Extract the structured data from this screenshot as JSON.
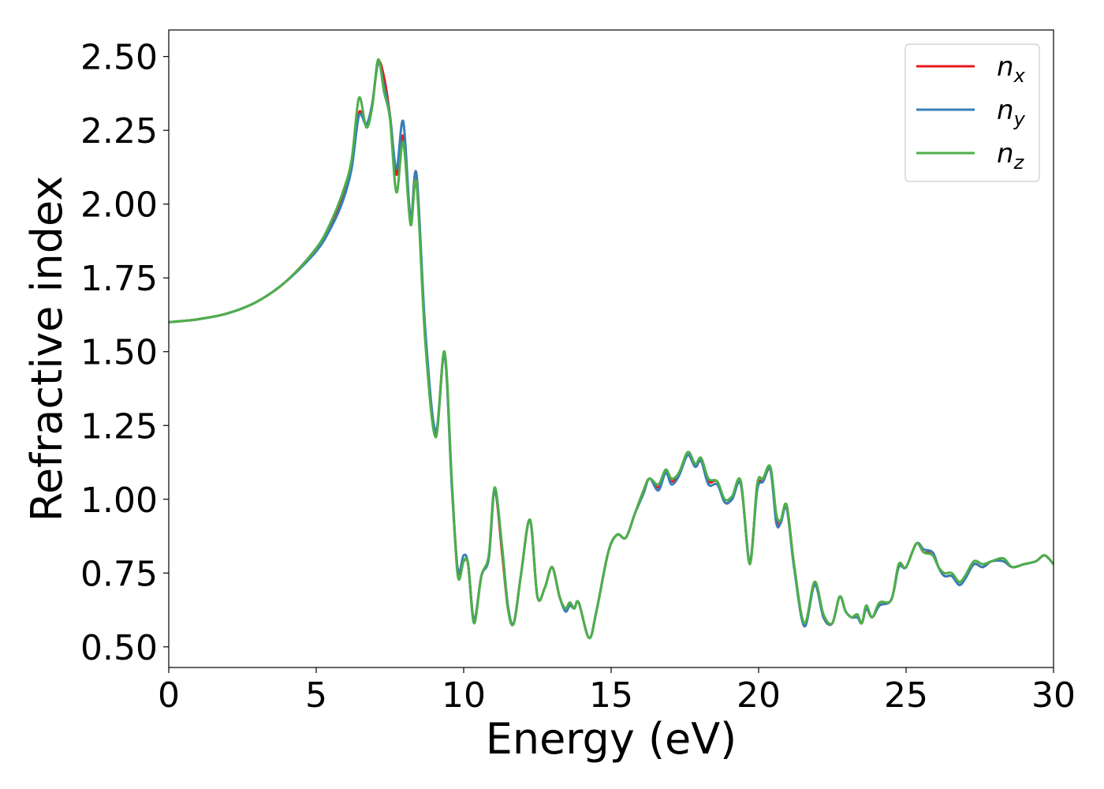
{
  "chart_data": {
    "type": "line",
    "title": "",
    "xlabel": "Energy (eV)",
    "ylabel": "Refractive index",
    "xlim": [
      0,
      30
    ],
    "ylim": [
      0.43,
      2.59
    ],
    "xticks": [
      0,
      5,
      10,
      15,
      20,
      25,
      30
    ],
    "xtick_labels": [
      "0",
      "5",
      "10",
      "15",
      "20",
      "25",
      "30"
    ],
    "yticks": [
      0.5,
      0.75,
      1.0,
      1.25,
      1.5,
      1.75,
      2.0,
      2.25,
      2.5
    ],
    "ytick_labels": [
      "0.50",
      "0.75",
      "1.00",
      "1.25",
      "1.50",
      "1.75",
      "2.00",
      "2.25",
      "2.50"
    ],
    "grid": false,
    "legend_position": "top-right",
    "series": [
      {
        "name": "n_x",
        "label_main": "n",
        "label_sub": "x",
        "color": "#e41a1c",
        "x": [
          0,
          1,
          2,
          3,
          4,
          5,
          5.5,
          5.9,
          6.2,
          6.45,
          6.7,
          6.9,
          7.1,
          7.3,
          7.5,
          7.72,
          7.95,
          8.2,
          8.4,
          8.7,
          9.05,
          9.35,
          9.6,
          9.8,
          10.0,
          10.15,
          10.35,
          10.6,
          10.85,
          11.05,
          11.3,
          11.5,
          11.7,
          11.95,
          12.25,
          12.5,
          12.75,
          13.0,
          13.25,
          13.45,
          13.6,
          13.75,
          13.9,
          14.25,
          14.5,
          14.9,
          15.2,
          15.5,
          15.8,
          16.1,
          16.3,
          16.6,
          16.85,
          17.05,
          17.3,
          17.6,
          17.85,
          18.05,
          18.3,
          18.6,
          18.85,
          19.1,
          19.4,
          19.7,
          19.95,
          20.15,
          20.4,
          20.6,
          20.75,
          20.95,
          21.2,
          21.55,
          21.9,
          22.2,
          22.5,
          22.75,
          22.95,
          23.15,
          23.35,
          23.5,
          23.65,
          23.85,
          24.1,
          24.5,
          24.75,
          25.0,
          25.35,
          25.6,
          25.9,
          26.1,
          26.3,
          26.55,
          26.8,
          27.0,
          27.3,
          27.6,
          27.9,
          28.3,
          28.6,
          29.0,
          29.4,
          29.7,
          30.0
        ],
        "y": [
          1.6,
          1.61,
          1.63,
          1.67,
          1.74,
          1.85,
          1.93,
          2.03,
          2.13,
          2.31,
          2.27,
          2.34,
          2.48,
          2.43,
          2.3,
          2.1,
          2.23,
          1.95,
          2.1,
          1.55,
          1.22,
          1.49,
          1.05,
          0.76,
          0.79,
          0.78,
          0.59,
          0.74,
          0.8,
          1.03,
          0.82,
          0.63,
          0.58,
          0.75,
          0.93,
          0.67,
          0.7,
          0.77,
          0.67,
          0.63,
          0.65,
          0.63,
          0.65,
          0.53,
          0.62,
          0.82,
          0.88,
          0.87,
          0.95,
          1.03,
          1.07,
          1.04,
          1.1,
          1.06,
          1.09,
          1.15,
          1.11,
          1.13,
          1.06,
          1.06,
          0.99,
          1.0,
          1.05,
          0.79,
          1.04,
          1.06,
          1.1,
          0.94,
          0.92,
          0.98,
          0.78,
          0.57,
          0.72,
          0.6,
          0.58,
          0.67,
          0.62,
          0.6,
          0.6,
          0.58,
          0.63,
          0.6,
          0.64,
          0.66,
          0.77,
          0.77,
          0.85,
          0.82,
          0.82,
          0.77,
          0.74,
          0.74,
          0.71,
          0.73,
          0.78,
          0.77,
          0.79,
          0.79,
          0.77,
          0.78,
          0.79,
          0.81,
          0.78
        ]
      },
      {
        "name": "n_y",
        "label_main": "n",
        "label_sub": "y",
        "color": "#377eb8",
        "x": [
          0,
          1,
          2,
          3,
          4,
          5,
          5.5,
          5.9,
          6.2,
          6.45,
          6.7,
          6.9,
          7.1,
          7.3,
          7.5,
          7.72,
          7.95,
          8.2,
          8.4,
          8.7,
          9.05,
          9.35,
          9.6,
          9.8,
          10.0,
          10.15,
          10.35,
          10.6,
          10.85,
          11.05,
          11.3,
          11.5,
          11.7,
          11.95,
          12.25,
          12.5,
          12.75,
          13.0,
          13.25,
          13.45,
          13.6,
          13.75,
          13.9,
          14.25,
          14.5,
          14.9,
          15.2,
          15.5,
          15.8,
          16.1,
          16.3,
          16.6,
          16.85,
          17.05,
          17.3,
          17.6,
          17.85,
          18.05,
          18.3,
          18.6,
          18.85,
          19.1,
          19.4,
          19.7,
          19.95,
          20.15,
          20.4,
          20.6,
          20.75,
          20.95,
          21.2,
          21.55,
          21.9,
          22.2,
          22.5,
          22.75,
          22.95,
          23.15,
          23.35,
          23.5,
          23.65,
          23.85,
          24.1,
          24.5,
          24.75,
          25.0,
          25.35,
          25.6,
          25.9,
          26.1,
          26.3,
          26.55,
          26.8,
          27.0,
          27.3,
          27.6,
          27.9,
          28.3,
          28.6,
          29.0,
          29.4,
          29.7,
          30.0
        ],
        "y": [
          1.6,
          1.61,
          1.63,
          1.67,
          1.74,
          1.84,
          1.92,
          2.01,
          2.12,
          2.3,
          2.27,
          2.34,
          2.48,
          2.4,
          2.3,
          2.12,
          2.28,
          1.95,
          2.1,
          1.57,
          1.23,
          1.49,
          1.04,
          0.76,
          0.81,
          0.78,
          0.59,
          0.74,
          0.8,
          1.03,
          0.84,
          0.64,
          0.58,
          0.75,
          0.93,
          0.67,
          0.7,
          0.77,
          0.67,
          0.62,
          0.64,
          0.63,
          0.65,
          0.53,
          0.62,
          0.82,
          0.88,
          0.87,
          0.95,
          1.02,
          1.07,
          1.03,
          1.09,
          1.05,
          1.08,
          1.15,
          1.11,
          1.13,
          1.05,
          1.05,
          0.99,
          1.0,
          1.05,
          0.79,
          1.03,
          1.06,
          1.1,
          0.92,
          0.92,
          0.97,
          0.77,
          0.57,
          0.71,
          0.6,
          0.58,
          0.67,
          0.62,
          0.6,
          0.6,
          0.58,
          0.63,
          0.6,
          0.64,
          0.66,
          0.77,
          0.77,
          0.85,
          0.83,
          0.82,
          0.77,
          0.74,
          0.74,
          0.71,
          0.73,
          0.78,
          0.77,
          0.79,
          0.79,
          0.77,
          0.78,
          0.79,
          0.81,
          0.78
        ]
      },
      {
        "name": "n_z",
        "label_main": "n",
        "label_sub": "z",
        "color": "#4daf4a",
        "x": [
          0,
          1,
          2,
          3,
          4,
          5,
          5.5,
          5.9,
          6.2,
          6.45,
          6.7,
          6.9,
          7.1,
          7.3,
          7.5,
          7.72,
          7.95,
          8.2,
          8.4,
          8.7,
          9.05,
          9.35,
          9.6,
          9.8,
          10.0,
          10.15,
          10.35,
          10.6,
          10.85,
          11.05,
          11.3,
          11.5,
          11.7,
          11.95,
          12.25,
          12.5,
          12.75,
          13.0,
          13.25,
          13.45,
          13.6,
          13.75,
          13.9,
          14.25,
          14.5,
          14.9,
          15.2,
          15.5,
          15.8,
          16.1,
          16.3,
          16.6,
          16.85,
          17.05,
          17.3,
          17.6,
          17.85,
          18.05,
          18.3,
          18.6,
          18.85,
          19.1,
          19.4,
          19.7,
          19.95,
          20.15,
          20.4,
          20.6,
          20.75,
          20.95,
          21.2,
          21.55,
          21.9,
          22.2,
          22.5,
          22.75,
          22.95,
          23.15,
          23.35,
          23.5,
          23.65,
          23.85,
          24.1,
          24.5,
          24.75,
          25.0,
          25.35,
          25.6,
          25.9,
          26.1,
          26.3,
          26.55,
          26.8,
          27.0,
          27.3,
          27.6,
          27.9,
          28.3,
          28.6,
          29.0,
          29.4,
          29.7,
          30.0
        ],
        "y": [
          1.6,
          1.61,
          1.63,
          1.67,
          1.74,
          1.85,
          1.94,
          2.04,
          2.15,
          2.36,
          2.26,
          2.33,
          2.49,
          2.38,
          2.29,
          2.04,
          2.21,
          1.93,
          2.07,
          1.53,
          1.21,
          1.5,
          1.06,
          0.74,
          0.79,
          0.78,
          0.58,
          0.74,
          0.81,
          1.04,
          0.84,
          0.63,
          0.58,
          0.75,
          0.93,
          0.67,
          0.7,
          0.77,
          0.67,
          0.63,
          0.65,
          0.63,
          0.65,
          0.53,
          0.62,
          0.82,
          0.88,
          0.87,
          0.95,
          1.03,
          1.07,
          1.05,
          1.1,
          1.07,
          1.09,
          1.16,
          1.12,
          1.14,
          1.07,
          1.06,
          1.0,
          1.01,
          1.06,
          0.78,
          1.05,
          1.07,
          1.11,
          0.95,
          0.93,
          0.98,
          0.78,
          0.58,
          0.72,
          0.61,
          0.58,
          0.67,
          0.62,
          0.6,
          0.61,
          0.58,
          0.64,
          0.6,
          0.65,
          0.66,
          0.78,
          0.77,
          0.85,
          0.82,
          0.81,
          0.77,
          0.75,
          0.75,
          0.72,
          0.74,
          0.79,
          0.78,
          0.79,
          0.8,
          0.77,
          0.78,
          0.79,
          0.81,
          0.78
        ]
      }
    ]
  }
}
